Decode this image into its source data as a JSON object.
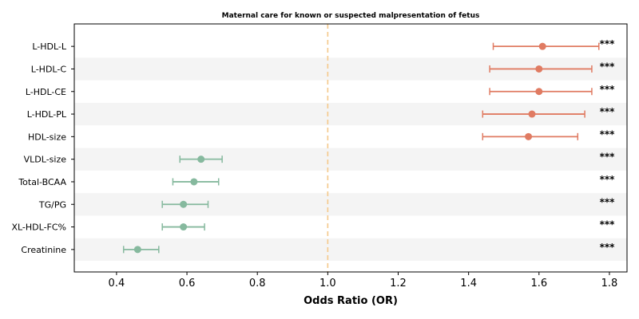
{
  "chart_data": {
    "type": "scatter",
    "subtype": "forest-plot",
    "title": "Maternal care for known or suspected malpresentation of fetus",
    "xlabel": "Odds Ratio (OR)",
    "ylabel": "",
    "xlim": [
      0.28,
      1.85
    ],
    "xticks": [
      0.4,
      0.6,
      0.8,
      1.0,
      1.2,
      1.4,
      1.6,
      1.8
    ],
    "xtick_labels": [
      "0.4",
      "0.6",
      "0.8",
      "1.0",
      "1.2",
      "1.4",
      "1.6",
      "1.8"
    ],
    "reference_line": 1.0,
    "reference_line_style": "dashed",
    "grid": false,
    "row_shading": "alternating",
    "colors": {
      "increase": "#e07b62",
      "decrease": "#86b99e",
      "reference": "#f5c98a",
      "shade": "#f4f4f4"
    },
    "rows": [
      {
        "label": "L-HDL-L",
        "or": 1.61,
        "lo": 1.47,
        "hi": 1.77,
        "sig": "***",
        "group": "increase"
      },
      {
        "label": "L-HDL-C",
        "or": 1.6,
        "lo": 1.46,
        "hi": 1.75,
        "sig": "***",
        "group": "increase"
      },
      {
        "label": "L-HDL-CE",
        "or": 1.6,
        "lo": 1.46,
        "hi": 1.75,
        "sig": "***",
        "group": "increase"
      },
      {
        "label": "L-HDL-PL",
        "or": 1.58,
        "lo": 1.44,
        "hi": 1.73,
        "sig": "***",
        "group": "increase"
      },
      {
        "label": "HDL-size",
        "or": 1.57,
        "lo": 1.44,
        "hi": 1.71,
        "sig": "***",
        "group": "increase"
      },
      {
        "label": "VLDL-size",
        "or": 0.64,
        "lo": 0.58,
        "hi": 0.7,
        "sig": "***",
        "group": "decrease"
      },
      {
        "label": "Total-BCAA",
        "or": 0.62,
        "lo": 0.56,
        "hi": 0.69,
        "sig": "***",
        "group": "decrease"
      },
      {
        "label": "TG/PG",
        "or": 0.59,
        "lo": 0.53,
        "hi": 0.66,
        "sig": "***",
        "group": "decrease"
      },
      {
        "label": "XL-HDL-FC%",
        "or": 0.59,
        "lo": 0.53,
        "hi": 0.65,
        "sig": "***",
        "group": "decrease"
      },
      {
        "label": "Creatinine",
        "or": 0.46,
        "lo": 0.42,
        "hi": 0.52,
        "sig": "***",
        "group": "decrease"
      }
    ]
  }
}
